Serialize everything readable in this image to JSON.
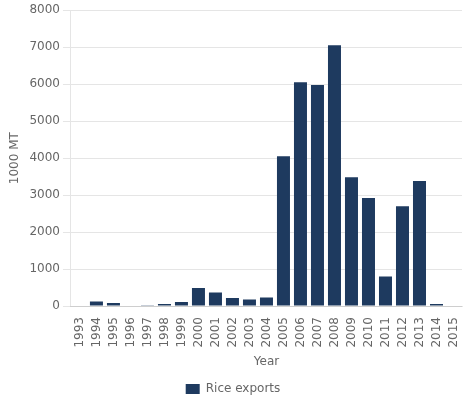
{
  "chart_data": {
    "type": "bar",
    "categories": [
      "1993",
      "1994",
      "1995",
      "1996",
      "1997",
      "1998",
      "1999",
      "2000",
      "2001",
      "2002",
      "2003",
      "2004",
      "2005",
      "2006",
      "2007",
      "2008",
      "2009",
      "2010",
      "2011",
      "2012",
      "2013",
      "2014",
      "2015"
    ],
    "series": [
      {
        "name": "Rice exports",
        "color": "#1e3a5f",
        "values": [
          15,
          120,
          80,
          15,
          20,
          55,
          110,
          490,
          370,
          220,
          175,
          230,
          4050,
          6050,
          5980,
          7050,
          3480,
          2920,
          800,
          2700,
          3380,
          55,
          15
        ]
      }
    ],
    "xlabel": "Year",
    "ylabel": "1000 MT",
    "ylim": [
      0,
      8000
    ],
    "yticks": [
      0,
      1000,
      2000,
      3000,
      4000,
      5000,
      6000,
      7000,
      8000
    ],
    "grid": true,
    "legend": "bottom"
  }
}
